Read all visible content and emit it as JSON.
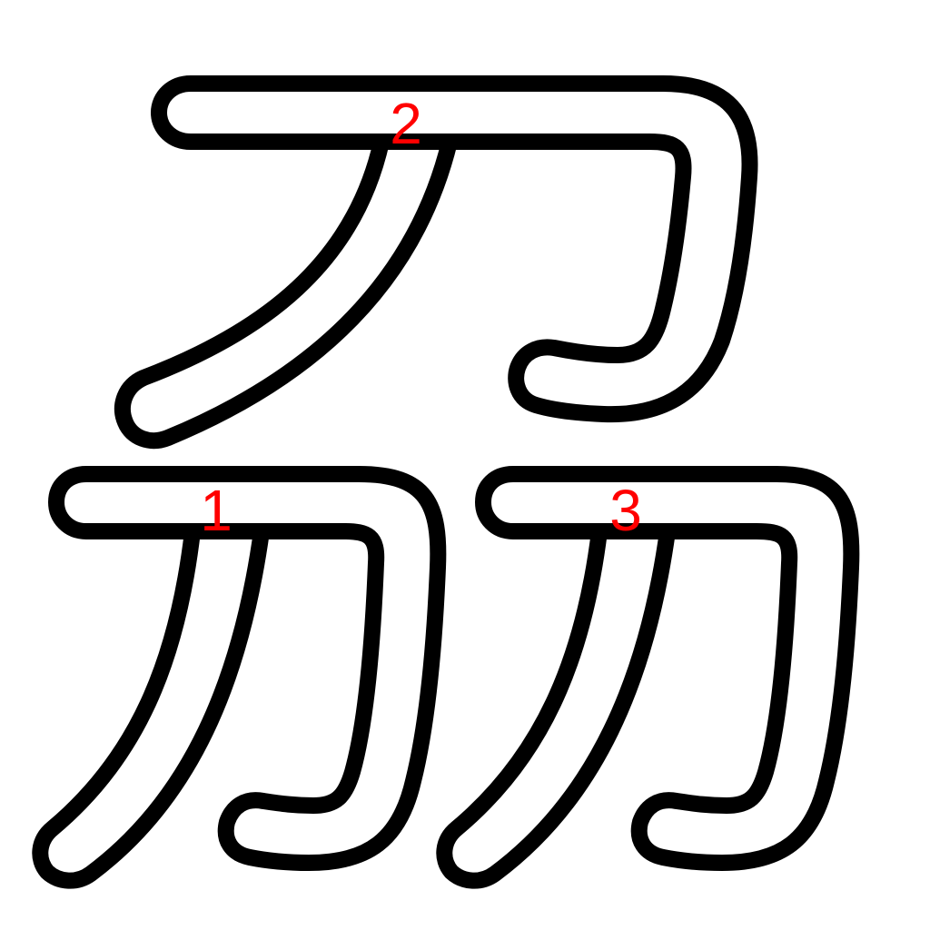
{
  "diagram": {
    "strokes": [
      {
        "order": "1",
        "component": "bottom-left"
      },
      {
        "order": "2",
        "component": "top"
      },
      {
        "order": "3",
        "component": "bottom-right"
      }
    ]
  },
  "colors": {
    "outline": "#000000",
    "fill": "#ffffff",
    "number": "#ff0000"
  }
}
